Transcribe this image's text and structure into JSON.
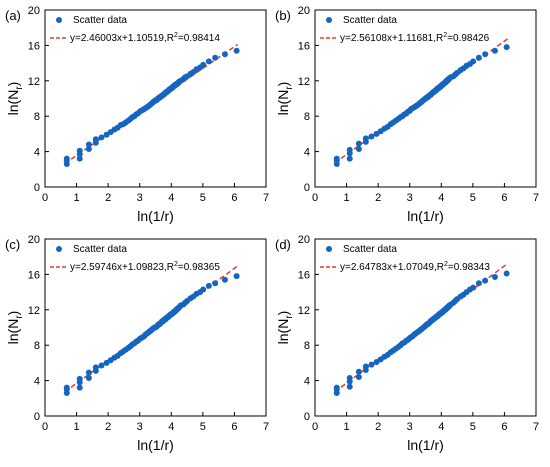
{
  "chart_data": [
    {
      "type": "scatter",
      "panel_label": "(a)",
      "xlabel": "ln(1/r)",
      "ylabel_main": "ln(N",
      "ylabel_sub": "r",
      "ylabel_close": ")",
      "xlim": [
        0,
        7
      ],
      "ylim": [
        0,
        20
      ],
      "xticks": [
        0,
        1,
        2,
        3,
        4,
        5,
        6,
        7
      ],
      "yticks": [
        0,
        4,
        8,
        12,
        16,
        20
      ],
      "series": [
        {
          "name": "Scatter data",
          "color": "#1565C0",
          "x": [
            0.69,
            0.69,
            0.69,
            1.1,
            1.1,
            1.1,
            1.39,
            1.39,
            1.61,
            1.61,
            1.79,
            1.95,
            2.08,
            2.2,
            2.3,
            2.4,
            2.48,
            2.56,
            2.64,
            2.71,
            2.77,
            2.83,
            2.89,
            2.94,
            3.0,
            3.04,
            3.09,
            3.14,
            3.18,
            3.22,
            3.26,
            3.3,
            3.33,
            3.37,
            3.4,
            3.43,
            3.47,
            3.5,
            3.53,
            3.56,
            3.58,
            3.61,
            3.64,
            3.66,
            3.69,
            3.71,
            3.74,
            3.76,
            3.78,
            3.81,
            3.83,
            3.85,
            3.87,
            3.89,
            3.91,
            3.93,
            3.95,
            3.97,
            3.99,
            4.01,
            4.03,
            4.04,
            4.06,
            4.08,
            4.09,
            4.11,
            4.13,
            4.14,
            4.16,
            4.17,
            4.19,
            4.2,
            4.22,
            4.23,
            4.25,
            4.26,
            4.3,
            4.38,
            4.44,
            4.5,
            4.61,
            4.7,
            4.8,
            4.91,
            5.01,
            5.19,
            5.39,
            5.7,
            6.07
          ],
          "y": [
            2.6,
            3.0,
            3.2,
            3.2,
            3.7,
            4.1,
            4.3,
            4.8,
            5.0,
            5.4,
            5.6,
            5.9,
            6.2,
            6.5,
            6.7,
            7.0,
            7.1,
            7.3,
            7.5,
            7.7,
            7.9,
            8.0,
            8.2,
            8.3,
            8.5,
            8.6,
            8.7,
            8.8,
            8.9,
            9.0,
            9.1,
            9.2,
            9.3,
            9.4,
            9.5,
            9.6,
            9.7,
            9.8,
            9.8,
            9.9,
            10.0,
            10.1,
            10.1,
            10.2,
            10.3,
            10.3,
            10.4,
            10.5,
            10.5,
            10.6,
            10.7,
            10.7,
            10.8,
            10.8,
            10.9,
            11.0,
            11.0,
            11.1,
            11.1,
            11.2,
            11.2,
            11.3,
            11.3,
            11.4,
            11.4,
            11.5,
            11.5,
            11.6,
            11.6,
            11.6,
            11.7,
            11.7,
            11.8,
            11.8,
            11.9,
            11.9,
            12.0,
            12.2,
            12.4,
            12.5,
            12.8,
            13.0,
            13.3,
            13.5,
            13.8,
            14.2,
            14.6,
            15.0,
            15.4
          ]
        }
      ],
      "fit": {
        "slope": 2.46003,
        "intercept": 1.10519,
        "x_range": [
          0.62,
          6.1
        ],
        "color": "#E53935",
        "label_main": "y=2.46003x+1.10519,R",
        "label_sup": "2",
        "label_end": "=0.98414"
      }
    },
    {
      "type": "scatter",
      "panel_label": "(b)",
      "xlabel": "ln(1/r)",
      "ylabel_main": "ln(N",
      "ylabel_sub": "r",
      "ylabel_close": ")",
      "xlim": [
        0,
        7
      ],
      "ylim": [
        0,
        20
      ],
      "xticks": [
        0,
        1,
        2,
        3,
        4,
        5,
        6,
        7
      ],
      "yticks": [
        0,
        4,
        8,
        12,
        16,
        20
      ],
      "series": [
        {
          "name": "Scatter data",
          "color": "#1565C0",
          "x": [
            0.69,
            0.69,
            0.69,
            1.1,
            1.1,
            1.1,
            1.39,
            1.39,
            1.61,
            1.61,
            1.79,
            1.95,
            2.08,
            2.2,
            2.3,
            2.4,
            2.48,
            2.56,
            2.64,
            2.71,
            2.77,
            2.83,
            2.89,
            2.94,
            3.0,
            3.04,
            3.09,
            3.14,
            3.18,
            3.22,
            3.26,
            3.3,
            3.33,
            3.37,
            3.4,
            3.43,
            3.47,
            3.5,
            3.53,
            3.56,
            3.58,
            3.61,
            3.64,
            3.66,
            3.69,
            3.71,
            3.74,
            3.76,
            3.78,
            3.81,
            3.83,
            3.85,
            3.87,
            3.89,
            3.91,
            3.93,
            3.95,
            3.97,
            3.99,
            4.01,
            4.03,
            4.04,
            4.06,
            4.08,
            4.09,
            4.11,
            4.13,
            4.14,
            4.16,
            4.17,
            4.19,
            4.2,
            4.22,
            4.23,
            4.25,
            4.26,
            4.3,
            4.38,
            4.44,
            4.5,
            4.61,
            4.7,
            4.8,
            4.91,
            5.01,
            5.19,
            5.39,
            5.7,
            6.07
          ],
          "y": [
            2.6,
            3.0,
            3.2,
            3.2,
            3.8,
            4.2,
            4.3,
            4.9,
            5.1,
            5.5,
            5.7,
            6.0,
            6.3,
            6.6,
            6.8,
            7.1,
            7.3,
            7.5,
            7.7,
            7.9,
            8.0,
            8.2,
            8.3,
            8.5,
            8.6,
            8.8,
            8.9,
            9.0,
            9.1,
            9.2,
            9.3,
            9.4,
            9.5,
            9.6,
            9.7,
            9.8,
            9.9,
            10.0,
            10.1,
            10.1,
            10.2,
            10.3,
            10.4,
            10.4,
            10.5,
            10.6,
            10.7,
            10.7,
            10.8,
            10.9,
            10.9,
            11.0,
            11.1,
            11.1,
            11.2,
            11.2,
            11.3,
            11.3,
            11.4,
            11.5,
            11.5,
            11.6,
            11.6,
            11.7,
            11.7,
            11.8,
            11.8,
            11.9,
            11.9,
            12.0,
            12.0,
            12.1,
            12.1,
            12.2,
            12.2,
            12.3,
            12.4,
            12.5,
            12.7,
            12.9,
            13.2,
            13.4,
            13.7,
            13.9,
            14.2,
            14.6,
            15.0,
            15.4,
            15.8
          ]
        }
      ],
      "fit": {
        "slope": 2.56108,
        "intercept": 1.11681,
        "x_range": [
          0.62,
          6.1
        ],
        "color": "#E53935",
        "label_main": "y=2.56108x+1.11681,R",
        "label_sup": "2",
        "label_end": "=0.98426"
      }
    },
    {
      "type": "scatter",
      "panel_label": "(c)",
      "xlabel": "ln(1/r)",
      "ylabel_main": "ln(N",
      "ylabel_sub": "r",
      "ylabel_close": ")",
      "xlim": [
        0,
        7
      ],
      "ylim": [
        0,
        20
      ],
      "xticks": [
        0,
        1,
        2,
        3,
        4,
        5,
        6,
        7
      ],
      "yticks": [
        0,
        4,
        8,
        12,
        16,
        20
      ],
      "series": [
        {
          "name": "Scatter data",
          "color": "#1565C0",
          "x": [
            0.69,
            0.69,
            0.69,
            1.1,
            1.1,
            1.1,
            1.39,
            1.39,
            1.61,
            1.61,
            1.79,
            1.95,
            2.08,
            2.2,
            2.3,
            2.4,
            2.48,
            2.56,
            2.64,
            2.71,
            2.77,
            2.83,
            2.89,
            2.94,
            3.0,
            3.04,
            3.09,
            3.14,
            3.18,
            3.22,
            3.26,
            3.3,
            3.33,
            3.37,
            3.4,
            3.43,
            3.47,
            3.5,
            3.53,
            3.56,
            3.58,
            3.61,
            3.64,
            3.66,
            3.69,
            3.71,
            3.74,
            3.76,
            3.78,
            3.81,
            3.83,
            3.85,
            3.87,
            3.89,
            3.91,
            3.93,
            3.95,
            3.97,
            3.99,
            4.01,
            4.03,
            4.04,
            4.06,
            4.08,
            4.09,
            4.11,
            4.13,
            4.14,
            4.16,
            4.17,
            4.19,
            4.2,
            4.22,
            4.23,
            4.25,
            4.26,
            4.3,
            4.38,
            4.44,
            4.5,
            4.61,
            4.7,
            4.8,
            4.91,
            5.01,
            5.19,
            5.39,
            5.7,
            6.07
          ],
          "y": [
            2.6,
            3.0,
            3.2,
            3.2,
            3.8,
            4.2,
            4.3,
            4.9,
            5.1,
            5.5,
            5.7,
            6.0,
            6.3,
            6.6,
            6.8,
            7.1,
            7.3,
            7.5,
            7.7,
            7.9,
            8.1,
            8.2,
            8.4,
            8.5,
            8.7,
            8.8,
            8.9,
            9.0,
            9.2,
            9.3,
            9.4,
            9.5,
            9.6,
            9.7,
            9.8,
            9.9,
            10.0,
            10.0,
            10.1,
            10.2,
            10.3,
            10.4,
            10.4,
            10.5,
            10.6,
            10.7,
            10.7,
            10.8,
            10.9,
            10.9,
            11.0,
            11.1,
            11.1,
            11.2,
            11.2,
            11.3,
            11.4,
            11.4,
            11.5,
            11.5,
            11.6,
            11.6,
            11.7,
            11.7,
            11.8,
            11.8,
            11.9,
            11.9,
            12.0,
            12.0,
            12.1,
            12.1,
            12.2,
            12.2,
            12.3,
            12.3,
            12.5,
            12.6,
            12.8,
            13.0,
            13.3,
            13.5,
            13.8,
            14.0,
            14.3,
            14.7,
            15.0,
            15.4,
            15.8
          ]
        }
      ],
      "fit": {
        "slope": 2.59746,
        "intercept": 1.09823,
        "x_range": [
          0.62,
          6.1
        ],
        "color": "#E53935",
        "label_main": "y=2.59746x+1.09823,R",
        "label_sup": "2",
        "label_end": "=0.98365"
      }
    },
    {
      "type": "scatter",
      "panel_label": "(d)",
      "xlabel": "ln(1/r)",
      "ylabel_main": "ln(N",
      "ylabel_sub": "r",
      "ylabel_close": ")",
      "xlim": [
        0,
        7
      ],
      "ylim": [
        0,
        20
      ],
      "xticks": [
        0,
        1,
        2,
        3,
        4,
        5,
        6,
        7
      ],
      "yticks": [
        0,
        4,
        8,
        12,
        16,
        20
      ],
      "series": [
        {
          "name": "Scatter data",
          "color": "#1565C0",
          "x": [
            0.69,
            0.69,
            0.69,
            1.1,
            1.1,
            1.1,
            1.39,
            1.39,
            1.61,
            1.61,
            1.79,
            1.95,
            2.08,
            2.2,
            2.3,
            2.4,
            2.48,
            2.56,
            2.64,
            2.71,
            2.77,
            2.83,
            2.89,
            2.94,
            3.0,
            3.04,
            3.09,
            3.14,
            3.18,
            3.22,
            3.26,
            3.3,
            3.33,
            3.37,
            3.4,
            3.43,
            3.47,
            3.5,
            3.53,
            3.56,
            3.58,
            3.61,
            3.64,
            3.66,
            3.69,
            3.71,
            3.74,
            3.76,
            3.78,
            3.81,
            3.83,
            3.85,
            3.87,
            3.89,
            3.91,
            3.93,
            3.95,
            3.97,
            3.99,
            4.01,
            4.03,
            4.04,
            4.06,
            4.08,
            4.09,
            4.11,
            4.13,
            4.14,
            4.16,
            4.17,
            4.19,
            4.2,
            4.22,
            4.23,
            4.25,
            4.26,
            4.3,
            4.38,
            4.44,
            4.5,
            4.61,
            4.7,
            4.8,
            4.91,
            5.01,
            5.19,
            5.39,
            5.7,
            6.07
          ],
          "y": [
            2.6,
            3.0,
            3.2,
            3.3,
            3.9,
            4.3,
            4.4,
            5.0,
            5.2,
            5.6,
            5.8,
            6.1,
            6.4,
            6.7,
            6.9,
            7.2,
            7.4,
            7.6,
            7.8,
            8.0,
            8.2,
            8.3,
            8.5,
            8.6,
            8.8,
            8.9,
            9.0,
            9.2,
            9.3,
            9.4,
            9.5,
            9.6,
            9.7,
            9.8,
            9.9,
            10.0,
            10.1,
            10.2,
            10.3,
            10.4,
            10.4,
            10.5,
            10.6,
            10.7,
            10.8,
            10.8,
            10.9,
            11.0,
            11.0,
            11.1,
            11.2,
            11.2,
            11.3,
            11.3,
            11.4,
            11.5,
            11.5,
            11.6,
            11.6,
            11.7,
            11.7,
            11.8,
            11.8,
            11.9,
            11.9,
            12.0,
            12.0,
            12.1,
            12.1,
            12.2,
            12.2,
            12.3,
            12.3,
            12.4,
            12.4,
            12.5,
            12.6,
            12.8,
            13.0,
            13.2,
            13.5,
            13.7,
            14.0,
            14.3,
            14.5,
            15.0,
            15.3,
            15.7,
            16.1
          ]
        }
      ],
      "fit": {
        "slope": 2.64783,
        "intercept": 1.07049,
        "x_range": [
          0.62,
          6.1
        ],
        "color": "#E53935",
        "label_main": "y=2.64783x+1.07049,R",
        "label_sup": "2",
        "label_end": "=0.98343"
      }
    }
  ]
}
